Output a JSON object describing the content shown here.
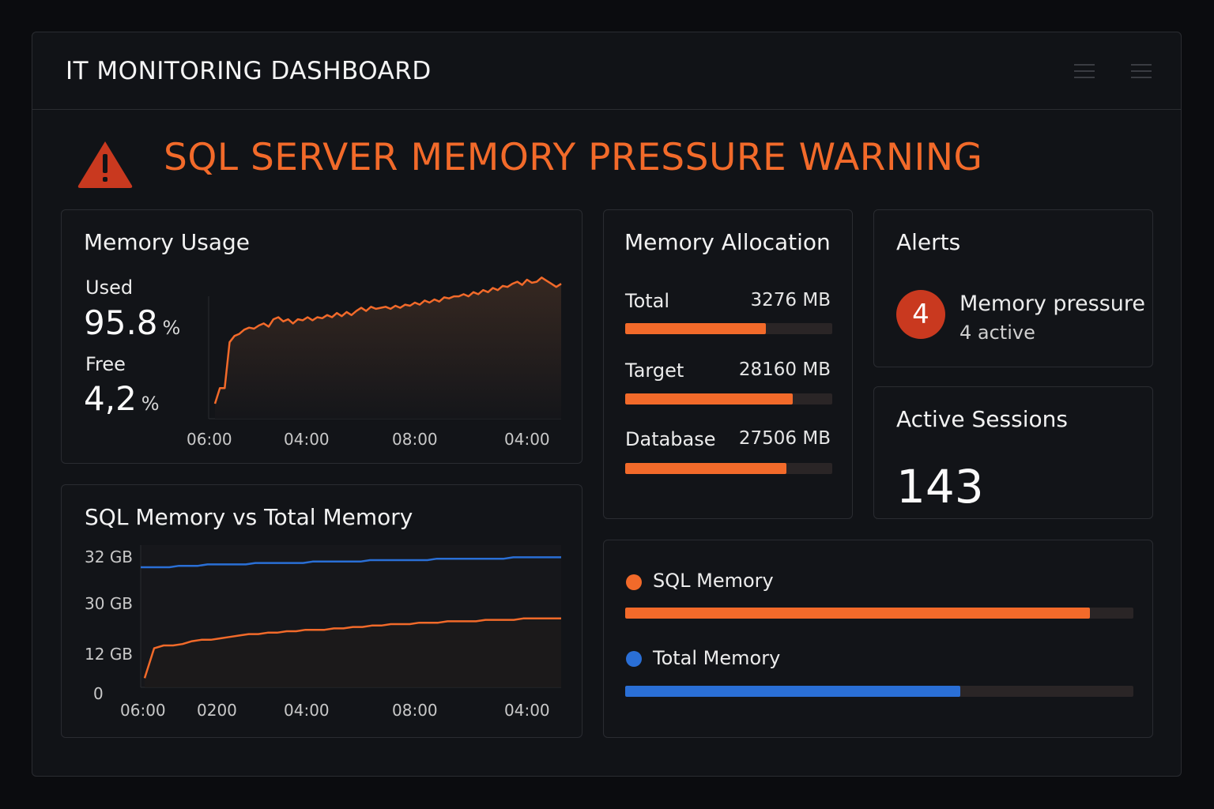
{
  "header": {
    "title": "IT MONITORING DASHBOARD",
    "menu_icons": [
      "menu-icon",
      "menu-icon"
    ]
  },
  "warning": {
    "icon": "warning-triangle-icon",
    "title": "SQL SERVER MEMORY PRESSURE WARNING"
  },
  "colors": {
    "accent": "#f26a2a",
    "blue": "#2a6fd6",
    "alert_badge": "#c9391f",
    "track": "#2a2526"
  },
  "memory_usage": {
    "title": "Memory Usage",
    "used_label": "Used",
    "used_value": "95.8",
    "used_unit": "%",
    "free_label": "Free",
    "free_value": "4,2",
    "free_unit": "%",
    "x_ticks": [
      "06:00",
      "04:00",
      "08:00",
      "04:00"
    ]
  },
  "allocation": {
    "title": "Memory Allocation",
    "rows": [
      {
        "label": "Total",
        "value": "3276 MB",
        "fill": 0.68
      },
      {
        "label": "Target",
        "value": "28160 MB",
        "fill": 0.81
      },
      {
        "label": "Database",
        "value": "27506 MB",
        "fill": 0.78
      }
    ]
  },
  "alerts": {
    "title": "Alerts",
    "count": "4",
    "name": "Memory pressure",
    "sub": "4 active"
  },
  "sessions": {
    "title": "Active Sessions",
    "value": "143"
  },
  "sql_vs_total": {
    "title": "SQL Memory vs Total Memory",
    "y_ticks": [
      {
        "num": "32",
        "unit": "GB"
      },
      {
        "num": "30",
        "unit": "GB"
      },
      {
        "num": "12",
        "unit": "GB"
      },
      {
        "num": "0",
        "unit": ""
      }
    ],
    "x_ticks": [
      "06:00",
      "0200",
      "04:00",
      "08:00",
      "04:00"
    ]
  },
  "legend": {
    "items": [
      {
        "label": "SQL Memory",
        "color": "#f26a2a",
        "fill": 0.915
      },
      {
        "label": "Total Memory",
        "color": "#2a6fd6",
        "fill": 0.66
      }
    ]
  },
  "chart_data": [
    {
      "type": "area",
      "title": "Memory Usage",
      "x_ticks": [
        "06:00",
        "04:00",
        "08:00",
        "04:00"
      ],
      "series": [
        {
          "values": [
            3,
            18,
            18,
            62,
            68,
            70,
            74,
            76,
            75,
            78,
            80,
            77,
            84,
            86,
            82,
            84,
            80,
            84,
            83,
            86,
            83,
            86,
            85,
            88,
            86,
            90,
            87,
            91,
            88,
            92,
            95,
            92,
            96,
            94,
            95,
            96,
            94,
            97,
            95,
            98,
            97,
            100,
            98,
            102,
            100,
            103,
            101,
            105,
            104,
            106,
            106,
            108,
            106,
            110,
            108,
            112,
            110,
            114,
            112,
            116,
            115,
            118,
            120,
            117,
            122,
            119,
            120,
            124,
            121,
            118,
            115,
            118
          ]
        }
      ]
    },
    {
      "type": "line",
      "title": "SQL Memory vs Total Memory",
      "x_ticks": [
        "06:00",
        "0200",
        "04:00",
        "08:00",
        "04:00"
      ],
      "y_ticks": [
        "32 GB",
        "30 GB",
        "12 GB",
        "0"
      ],
      "series": [
        {
          "name": "SQL Memory",
          "values": [
            2,
            23,
            25,
            25,
            26,
            28,
            29,
            29,
            30,
            31,
            32,
            33,
            33,
            34,
            34,
            35,
            35,
            36,
            36,
            36,
            37,
            37,
            38,
            38,
            39,
            39,
            40,
            40,
            40,
            41,
            41,
            41,
            42,
            42,
            42,
            42,
            43,
            43,
            43,
            43,
            44,
            44,
            44,
            44,
            44
          ]
        },
        {
          "name": "Total Memory",
          "values": [
            80,
            80,
            80,
            80,
            81,
            81,
            81,
            82,
            82,
            82,
            82,
            82,
            83,
            83,
            83,
            83,
            83,
            83,
            84,
            84,
            84,
            84,
            84,
            84,
            85,
            85,
            85,
            85,
            85,
            85,
            85,
            86,
            86,
            86,
            86,
            86,
            86,
            86,
            86,
            87,
            87,
            87,
            87,
            87,
            87
          ]
        }
      ]
    }
  ]
}
